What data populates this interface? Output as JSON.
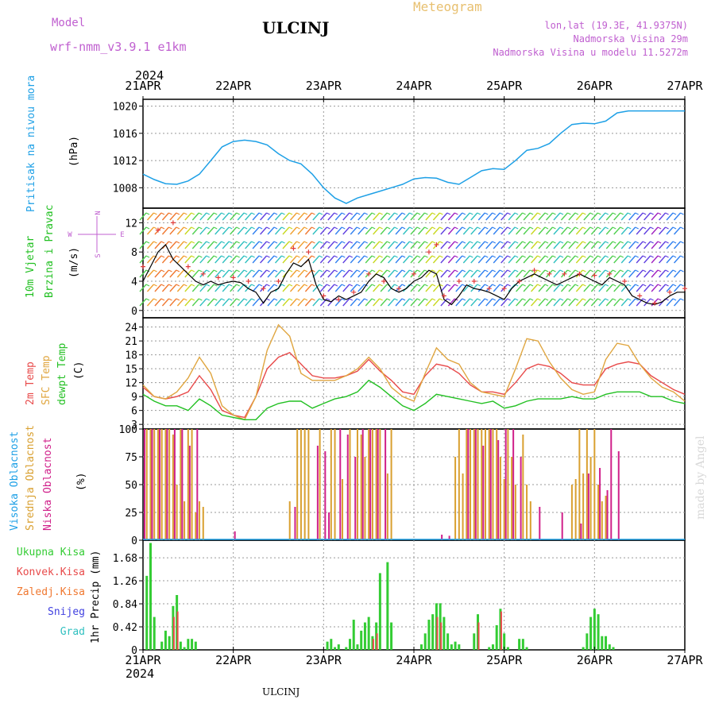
{
  "header": {
    "model_label": "Model",
    "model_name": "wrf-nmm_v3.9.1 e1km",
    "station": "ULCINJ",
    "product": "Meteogram",
    "location": "lon,lat (19.3E, 41.9375N)",
    "elevation": "Nadmorska Visina 29m",
    "model_elevation": "Nadmorska Visina u modelu 11.5272m",
    "year_top": "2024",
    "year_bottom": "2024",
    "footer_station": "ULCINJ",
    "watermark": "made by Angel"
  },
  "x_axis": {
    "labels": [
      "21APR",
      "22APR",
      "23APR",
      "24APR",
      "25APR",
      "26APR",
      "27APR"
    ],
    "range_hours": [
      0,
      144
    ]
  },
  "colors": {
    "pressure": "#1ea0e6",
    "wind_speed": "#000000",
    "wind_gust": "#e23b3b",
    "temp_2m": "#e84a4a",
    "temp_sfc": "#e0a640",
    "dewpoint": "#22c022",
    "cloud_high": "#1ea0e6",
    "cloud_mid": "#d9a030",
    "cloud_low": "#d0208a",
    "precip_total": "#33cc33",
    "precip_conv": "#e84a4a"
  },
  "chart_data": [
    {
      "type": "line",
      "panel": "pressure",
      "ylabel_main": "Pritisak na nivou mora",
      "ylabel_unit": "(hPa)",
      "yticks": [
        1008,
        1012,
        1016,
        1020
      ],
      "ylim": [
        1005,
        1021
      ],
      "grid": true,
      "series": [
        {
          "color_key": "pressure",
          "x": [
            0,
            3,
            6,
            9,
            12,
            15,
            18,
            21,
            24,
            27,
            30,
            33,
            36,
            39,
            42,
            45,
            48,
            51,
            54,
            57,
            60,
            63,
            66,
            69,
            72,
            75,
            78,
            81,
            84,
            87,
            90,
            93,
            96,
            99,
            102,
            105,
            108,
            111,
            114,
            117,
            120,
            123,
            126,
            129,
            132,
            135,
            138,
            141,
            144
          ],
          "y": [
            1010,
            1009.2,
            1008.6,
            1008.5,
            1009,
            1010,
            1012,
            1014,
            1014.8,
            1015,
            1014.8,
            1014.3,
            1013,
            1012,
            1011.5,
            1010,
            1008,
            1006.5,
            1005.7,
            1006.5,
            1007,
            1007.5,
            1008,
            1008.5,
            1009.3,
            1009.5,
            1009.4,
            1008.8,
            1008.5,
            1009.5,
            1010.5,
            1010.8,
            1010.7,
            1012,
            1013.5,
            1013.8,
            1014.5,
            1016,
            1017.3,
            1017.5,
            1017.4,
            1017.8,
            1019,
            1019.3,
            1019.3,
            1019.3,
            1019.3,
            1019.3,
            1019.3
          ]
        }
      ]
    },
    {
      "type": "line",
      "panel": "wind",
      "ylabel_main": "10m Vjetar",
      "ylabel_sub": "Brzina i Pravac",
      "ylabel_unit": "(m/s)",
      "compass": {
        "n": "N",
        "s": "S",
        "e": "E",
        "w": "W"
      },
      "yticks": [
        0,
        4,
        8,
        12
      ],
      "ylim": [
        -1,
        14
      ],
      "grid": true,
      "series": [
        {
          "color_key": "wind_speed",
          "x": [
            0,
            2,
            4,
            6,
            8,
            10,
            12,
            14,
            16,
            18,
            20,
            22,
            24,
            26,
            28,
            30,
            32,
            34,
            36,
            38,
            40,
            42,
            44,
            46,
            48,
            50,
            52,
            54,
            56,
            58,
            60,
            62,
            64,
            66,
            68,
            70,
            72,
            74,
            76,
            78,
            80,
            82,
            84,
            86,
            88,
            90,
            92,
            94,
            96,
            98,
            100,
            102,
            104,
            106,
            108,
            110,
            112,
            114,
            116,
            118,
            120,
            122,
            124,
            126,
            128,
            130,
            132,
            134,
            136,
            138,
            140,
            142,
            144
          ],
          "y": [
            4,
            6,
            8,
            9,
            7,
            6,
            5,
            4,
            3.5,
            4,
            3.5,
            3.8,
            4,
            3.8,
            3,
            2.5,
            1,
            2.5,
            3,
            5,
            6.5,
            6,
            7,
            3.5,
            1.5,
            1.2,
            2,
            1.5,
            2,
            2.5,
            4,
            5,
            4.5,
            3,
            2.5,
            3,
            4,
            4.5,
            5.5,
            5,
            1.5,
            0.8,
            2,
            3.5,
            3,
            2.8,
            2.5,
            2,
            1.5,
            3,
            4,
            4.5,
            5,
            4.5,
            4,
            3.5,
            4,
            4.5,
            5,
            4.5,
            4,
            3.5,
            4.5,
            4,
            3.5,
            2,
            1.5,
            1,
            0.8,
            1.2,
            2,
            2.5,
            2.5
          ]
        },
        {
          "color_key": "wind_gust",
          "x": [
            0,
            4,
            8,
            12,
            16,
            20,
            24,
            28,
            32,
            36,
            40,
            44,
            48,
            52,
            56,
            60,
            64,
            68,
            72,
            76,
            78,
            80,
            84,
            88,
            92,
            96,
            100,
            104,
            108,
            112,
            116,
            120,
            124,
            128,
            132,
            136,
            140,
            144
          ],
          "y": [
            6,
            11,
            12,
            6,
            5,
            4.5,
            4.5,
            4,
            3,
            4,
            8.5,
            8,
            2,
            1.5,
            2.5,
            5,
            4,
            3,
            5,
            8,
            9,
            2,
            4,
            4,
            3,
            3,
            4,
            5.5,
            5,
            5,
            5,
            4.8,
            5,
            4,
            2,
            1,
            2.5,
            3
          ]
        }
      ]
    },
    {
      "type": "line",
      "panel": "temperature",
      "ylabel_a": "2m Temp",
      "ylabel_b": "SFC Temp",
      "ylabel_c": "dewpt Temp",
      "ylabel_unit": "(C)",
      "yticks": [
        3,
        6,
        9,
        12,
        15,
        18,
        21,
        24
      ],
      "ylim": [
        2,
        26
      ],
      "grid": true,
      "series": [
        {
          "color_key": "temp_2m",
          "x": [
            0,
            3,
            6,
            9,
            12,
            15,
            18,
            21,
            24,
            27,
            30,
            33,
            36,
            39,
            42,
            45,
            48,
            51,
            54,
            57,
            60,
            63,
            66,
            69,
            72,
            75,
            78,
            81,
            84,
            87,
            90,
            93,
            96,
            99,
            102,
            105,
            108,
            111,
            114,
            117,
            120,
            123,
            126,
            129,
            132,
            135,
            138,
            141,
            144
          ],
          "y": [
            11,
            9,
            8.5,
            9,
            10,
            13.5,
            10.5,
            6,
            5,
            4.5,
            9,
            15,
            17.5,
            18.5,
            16,
            13.5,
            13,
            13,
            13.5,
            14.5,
            17,
            14.5,
            12.5,
            10,
            9.5,
            13.5,
            16,
            15.5,
            14,
            11.5,
            10,
            10,
            9.5,
            12,
            15,
            16,
            15.5,
            14,
            12,
            11.5,
            11.5,
            15,
            16,
            16.5,
            16,
            13.5,
            12,
            10.5,
            9.5
          ]
        },
        {
          "color_key": "temp_sfc",
          "x": [
            0,
            3,
            6,
            9,
            12,
            15,
            18,
            21,
            24,
            27,
            30,
            33,
            36,
            39,
            42,
            45,
            48,
            51,
            54,
            57,
            60,
            63,
            66,
            69,
            72,
            75,
            78,
            81,
            84,
            87,
            90,
            93,
            96,
            99,
            102,
            105,
            108,
            111,
            114,
            117,
            120,
            123,
            126,
            129,
            132,
            135,
            138,
            141,
            144
          ],
          "y": [
            11.5,
            9,
            8.5,
            10,
            13,
            17.5,
            14,
            7,
            5,
            4,
            9,
            19,
            24.5,
            22,
            14,
            12.5,
            12.5,
            12.5,
            13.5,
            15,
            17.5,
            15,
            11,
            9,
            8,
            14,
            19.5,
            17,
            16,
            12,
            10,
            9.5,
            9,
            15,
            21.5,
            21,
            16.5,
            13,
            10.5,
            9.5,
            10,
            17,
            20.5,
            20,
            16,
            13,
            11,
            10,
            8
          ]
        },
        {
          "color_key": "dewpoint",
          "x": [
            0,
            3,
            6,
            9,
            12,
            15,
            18,
            21,
            24,
            27,
            30,
            33,
            36,
            39,
            42,
            45,
            48,
            51,
            54,
            57,
            60,
            63,
            66,
            69,
            72,
            75,
            78,
            81,
            84,
            87,
            90,
            93,
            96,
            99,
            102,
            105,
            108,
            111,
            114,
            117,
            120,
            123,
            126,
            129,
            132,
            135,
            138,
            141,
            144
          ],
          "y": [
            9.5,
            8,
            7,
            7,
            6,
            8.5,
            7,
            5,
            4.5,
            4,
            4,
            6.5,
            7.5,
            8,
            8,
            6.5,
            7.5,
            8.5,
            9,
            10,
            12.5,
            11,
            9,
            7,
            6,
            7.5,
            9.5,
            9,
            8.5,
            8,
            7.5,
            8,
            6.5,
            7,
            8,
            8.5,
            8.5,
            8.5,
            9,
            8.5,
            8.5,
            9.5,
            10,
            10,
            10,
            9,
            9,
            8,
            7.5
          ]
        }
      ]
    },
    {
      "type": "bar",
      "panel": "clouds",
      "ylabel_a": "Visoka Oblacnost",
      "ylabel_b": "Srednja Oblacnost",
      "ylabel_c": "Niska Oblacnost",
      "ylabel_unit": "(%)",
      "yticks": [
        0,
        25,
        50,
        75,
        100
      ],
      "ylim": [
        0,
        100
      ],
      "grid": true,
      "series": [
        {
          "color_key": "cloud_mid",
          "x": [
            1,
            2,
            3,
            4,
            5,
            6,
            7,
            8,
            9,
            10,
            11,
            12,
            13,
            14,
            15,
            16,
            17,
            39,
            41,
            42,
            43,
            44,
            47,
            50,
            51,
            53,
            55,
            57,
            58,
            59,
            60,
            61,
            62,
            63,
            65,
            66,
            83,
            84,
            85,
            86,
            87,
            88,
            89,
            90,
            91,
            92,
            93,
            94,
            95,
            96,
            97,
            98,
            99,
            101,
            102,
            103,
            114,
            115,
            116,
            117,
            118,
            119,
            120,
            121,
            122,
            123
          ],
          "y": [
            100,
            100,
            100,
            100,
            100,
            100,
            100,
            95,
            50,
            100,
            35,
            100,
            100,
            25,
            35,
            30,
            0,
            35,
            100,
            100,
            100,
            100,
            100,
            100,
            100,
            55,
            100,
            100,
            95,
            75,
            100,
            100,
            100,
            100,
            60,
            100,
            75,
            100,
            60,
            100,
            100,
            100,
            100,
            100,
            100,
            100,
            100,
            100,
            75,
            55,
            100,
            75,
            50,
            95,
            50,
            35,
            50,
            55,
            100,
            60,
            100,
            75,
            100,
            50,
            35,
            40
          ]
        },
        {
          "color_key": "cloud_low",
          "x": [
            0,
            2,
            4,
            6,
            8,
            10,
            12,
            14,
            18,
            24,
            40,
            46,
            48,
            49,
            52,
            54,
            56,
            58,
            60,
            62,
            64,
            79,
            81,
            86,
            88,
            90,
            92,
            94,
            96,
            98,
            100,
            105,
            111,
            116,
            118,
            121,
            123,
            124,
            126
          ],
          "y": [
            100,
            100,
            100,
            100,
            100,
            100,
            85,
            100,
            0,
            8,
            30,
            85,
            80,
            25,
            100,
            95,
            75,
            100,
            100,
            100,
            100,
            5,
            4,
            100,
            100,
            85,
            100,
            90,
            100,
            100,
            75,
            30,
            25,
            15,
            60,
            65,
            45,
            100,
            80
          ]
        },
        {
          "color_key": "cloud_high",
          "x": [
            0
          ],
          "y": [
            0
          ]
        }
      ]
    },
    {
      "type": "bar",
      "panel": "precipitation",
      "legend": [
        "Ukupna Kisa",
        "Konvek.Kisa",
        "Zaledj.Kisa",
        "Snijeg",
        "Grad"
      ],
      "ylabel_unit": "1hr Precip (mm)",
      "yticks": [
        0,
        0.42,
        0.84,
        1.26,
        1.68
      ],
      "ylim": [
        0,
        2
      ],
      "grid": true,
      "series": [
        {
          "color_key": "precip_total",
          "x": [
            1,
            2,
            3,
            5,
            6,
            7,
            8,
            9,
            10,
            11,
            12,
            13,
            14,
            49,
            50,
            51,
            52,
            54,
            55,
            56,
            57,
            58,
            59,
            60,
            61,
            62,
            63,
            65,
            66,
            74,
            75,
            76,
            77,
            78,
            79,
            80,
            81,
            82,
            83,
            84,
            88,
            89,
            92,
            93,
            94,
            95,
            96,
            97,
            100,
            101,
            102,
            117,
            118,
            119,
            120,
            121,
            122,
            123,
            124,
            125
          ],
          "y": [
            1.35,
            1.95,
            0.6,
            0.15,
            0.35,
            0.25,
            0.8,
            1.0,
            0.15,
            0.05,
            0.2,
            0.2,
            0.15,
            0.15,
            0.2,
            0.05,
            0.1,
            0.05,
            0.2,
            0.55,
            0.1,
            0.35,
            0.5,
            0.6,
            0.25,
            0.5,
            1.4,
            1.6,
            0.5,
            0.1,
            0.3,
            0.55,
            0.65,
            0.85,
            0.85,
            0.6,
            0.3,
            0.1,
            0.15,
            0.1,
            0.3,
            0.65,
            0.05,
            0.1,
            0.45,
            0.75,
            0.3,
            0.05,
            0.2,
            0.2,
            0.05,
            0.05,
            0.3,
            0.6,
            0.75,
            0.65,
            0.25,
            0.25,
            0.1,
            0.05
          ]
        },
        {
          "color_key": "precip_conv",
          "x": [
            8,
            9,
            61,
            62,
            78,
            79,
            89,
            95
          ],
          "y": [
            0.6,
            0.7,
            0.2,
            0.3,
            0.6,
            0.5,
            0.5,
            0.7
          ]
        }
      ]
    }
  ]
}
